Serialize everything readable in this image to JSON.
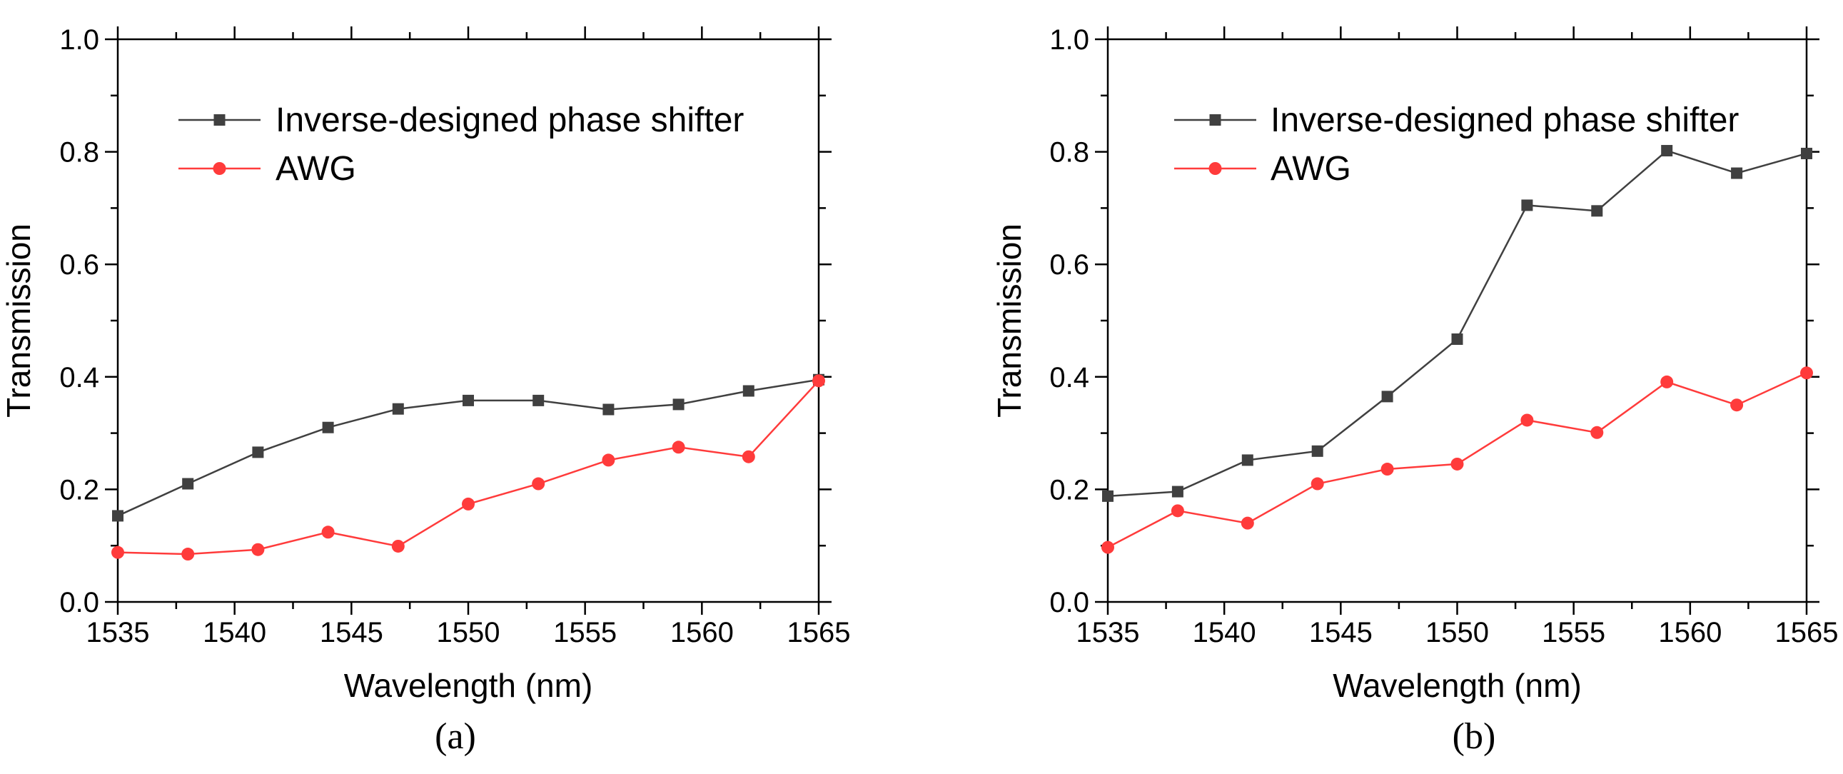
{
  "colors": {
    "series_1": "#404040",
    "series_2": "#ff3b3b",
    "axis": "#000000",
    "background": "#ffffff"
  },
  "chart_data": [
    {
      "type": "line",
      "panel_label": "(a)",
      "title": "",
      "xlabel": "Wavelength (nm)",
      "ylabel": "Transmission",
      "xlim": [
        1535,
        1565
      ],
      "ylim": [
        0.0,
        1.0
      ],
      "xticks": [
        1535,
        1540,
        1545,
        1550,
        1555,
        1560,
        1565
      ],
      "xtick_labels": [
        "1535",
        "1540",
        "1545",
        "1550",
        "1555",
        "1560",
        "1565"
      ],
      "yticks": [
        0.0,
        0.2,
        0.4,
        0.6,
        0.8,
        1.0
      ],
      "ytick_labels": [
        "0.0",
        "0.2",
        "0.4",
        "0.6",
        "0.8",
        "1.0"
      ],
      "grid": false,
      "legend_position": "top-right",
      "x": [
        1535,
        1538,
        1541,
        1544,
        1547,
        1550,
        1553,
        1556,
        1559,
        1562,
        1565
      ],
      "series": [
        {
          "name": "Inverse-designed phase shifter",
          "marker": "square",
          "color": "#404040",
          "values": [
            0.153,
            0.21,
            0.266,
            0.31,
            0.343,
            0.358,
            0.358,
            0.342,
            0.351,
            0.375,
            0.395
          ]
        },
        {
          "name": "AWG",
          "marker": "circle",
          "color": "#ff3b3b",
          "values": [
            0.088,
            0.085,
            0.093,
            0.124,
            0.099,
            0.174,
            0.21,
            0.252,
            0.275,
            0.258,
            0.393
          ]
        }
      ]
    },
    {
      "type": "line",
      "panel_label": "(b)",
      "title": "",
      "xlabel": "Wavelength (nm)",
      "ylabel": "Transmission",
      "xlim": [
        1535,
        1565
      ],
      "ylim": [
        0.0,
        1.0
      ],
      "xticks": [
        1535,
        1540,
        1545,
        1550,
        1555,
        1560,
        1565
      ],
      "xtick_labels": [
        "1535",
        "1540",
        "1545",
        "1550",
        "1555",
        "1560",
        "1565"
      ],
      "yticks": [
        0.0,
        0.2,
        0.4,
        0.6,
        0.8,
        1.0
      ],
      "ytick_labels": [
        "0.0",
        "0.2",
        "0.4",
        "0.6",
        "0.8",
        "1.0"
      ],
      "grid": false,
      "legend_position": "top-right",
      "x": [
        1535,
        1538,
        1541,
        1544,
        1547,
        1550,
        1553,
        1556,
        1559,
        1562,
        1565
      ],
      "series": [
        {
          "name": "Inverse-designed phase shifter",
          "marker": "square",
          "color": "#404040",
          "values": [
            0.188,
            0.196,
            0.252,
            0.268,
            0.365,
            0.467,
            0.705,
            0.695,
            0.802,
            0.762,
            0.797
          ]
        },
        {
          "name": "AWG",
          "marker": "circle",
          "color": "#ff3b3b",
          "values": [
            0.097,
            0.162,
            0.14,
            0.21,
            0.236,
            0.245,
            0.323,
            0.301,
            0.391,
            0.35,
            0.407
          ]
        }
      ]
    }
  ]
}
